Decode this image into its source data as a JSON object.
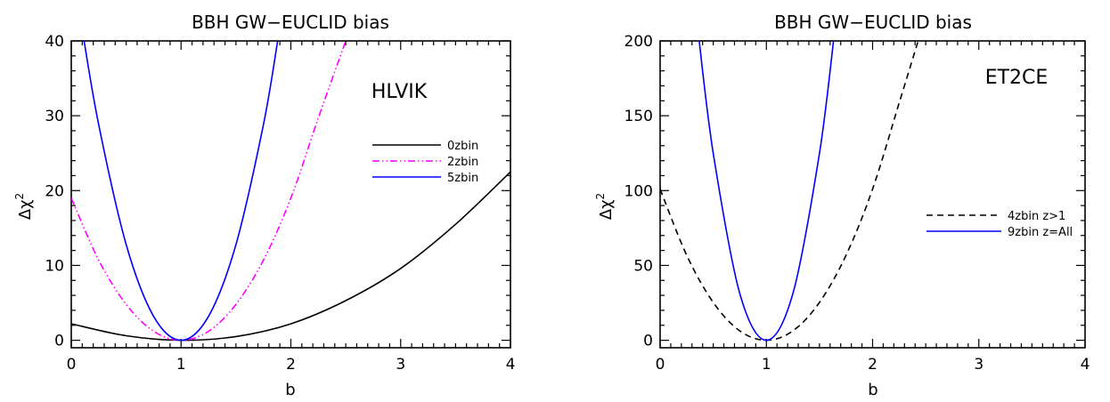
{
  "chart_data": [
    {
      "type": "line",
      "title": "BBH GW−EUCLID bias",
      "xlabel": "b",
      "ylabel": "Δχ",
      "ylabel_superscript": "2",
      "annotation": "HLVIK",
      "xlim": [
        0,
        4
      ],
      "ylim": [
        -1,
        40
      ],
      "xticks": [
        0,
        1,
        2,
        3,
        4
      ],
      "yticks": [
        0,
        10,
        20,
        30,
        40
      ],
      "legend_position": "right",
      "series": [
        {
          "name": "0zbin",
          "color": "#000000",
          "dash": "solid",
          "x": [
            0,
            0.5,
            1,
            1.5,
            2,
            2.5,
            3,
            3.5,
            4
          ],
          "y": [
            2.2,
            0.6,
            0,
            0.5,
            2.2,
            5.3,
            9.6,
            15.5,
            22.5
          ]
        },
        {
          "name": "2zbin",
          "color": "#ff00ff",
          "dash": "dash-dot-dot",
          "x": [
            0,
            0.25,
            0.5,
            0.75,
            1,
            1.25,
            1.5,
            1.75,
            2,
            2.25,
            2.5
          ],
          "y": [
            19.0,
            10.7,
            4.8,
            1.2,
            0,
            1.2,
            4.8,
            10.7,
            19.0,
            29.7,
            40.0
          ]
        },
        {
          "name": "5zbin",
          "color": "#0000ff",
          "dash": "solid",
          "x": [
            0.1,
            0.25,
            0.5,
            0.75,
            1,
            1.25,
            1.5,
            1.75,
            1.88
          ],
          "y": [
            41.5,
            28.8,
            12.8,
            3.2,
            0,
            3.2,
            12.8,
            28.8,
            40.0
          ]
        }
      ]
    },
    {
      "type": "line",
      "title": "BBH GW−EUCLID bias",
      "xlabel": "b",
      "ylabel": "Δχ",
      "ylabel_superscript": "2",
      "annotation": "ET2CE",
      "xlim": [
        0,
        4
      ],
      "ylim": [
        -5,
        200
      ],
      "xticks": [
        0,
        1,
        2,
        3,
        4
      ],
      "yticks": [
        0,
        50,
        100,
        150,
        200
      ],
      "legend_position": "right",
      "series": [
        {
          "name": "4zbin  z>1",
          "color": "#000000",
          "dash": "dashed",
          "x": [
            0,
            0.25,
            0.5,
            0.75,
            1,
            1.25,
            1.5,
            1.75,
            2,
            2.25,
            2.45
          ],
          "y": [
            101,
            56.8,
            25.3,
            6.3,
            0,
            6.3,
            25.3,
            56.8,
            101,
            158.5,
            205
          ]
        },
        {
          "name": "9zbin  z=All",
          "color": "#0000ff",
          "dash": "solid",
          "x": [
            0.36,
            0.5,
            0.75,
            1,
            1.25,
            1.5,
            1.64
          ],
          "y": [
            205,
            125,
            31.3,
            0,
            31.3,
            125,
            205
          ]
        }
      ]
    }
  ]
}
